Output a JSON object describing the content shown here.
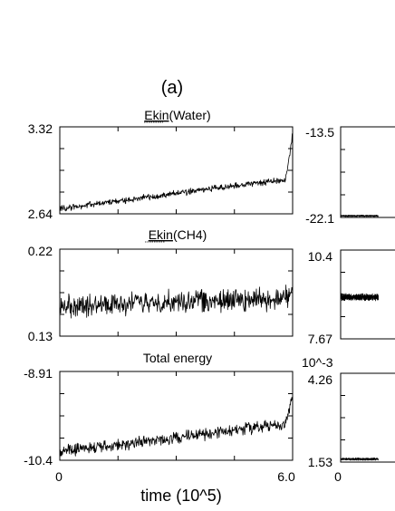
{
  "figure": {
    "panel_label": "(a)",
    "x_axis_title": "time (10^5)"
  },
  "chart_data": [
    {
      "type": "line",
      "id": "ekin-water",
      "title": "Ekin(Water)",
      "title_underlined_part": "Ekin",
      "title_rest": "(Water)",
      "xlim": [
        0,
        6.0
      ],
      "ylim": [
        2.64,
        3.32
      ],
      "y_tick_labels": [
        "3.32",
        "2.64"
      ],
      "x_tick_labels": [],
      "grid": false,
      "legend": "none",
      "series": [
        {
          "color": "#000000",
          "noise_amplitude": 0.03,
          "x": [
            0,
            1,
            2,
            3,
            4,
            5,
            5.8,
            5.9,
            6.0
          ],
          "y": [
            2.68,
            2.72,
            2.76,
            2.8,
            2.84,
            2.88,
            2.9,
            3.05,
            3.27
          ]
        }
      ]
    },
    {
      "type": "line",
      "id": "ekin-ch4",
      "title": "Ekin(CH4)",
      "title_underlined_part": "Ekin",
      "title_rest": "(CH4)",
      "xlim": [
        0,
        6.0
      ],
      "ylim": [
        0.13,
        0.22
      ],
      "y_tick_labels": [
        "0.22",
        "0.13"
      ],
      "x_tick_labels": [],
      "grid": false,
      "legend": "none",
      "series": [
        {
          "color": "#000000",
          "noise_amplitude": 0.014,
          "x": [
            0,
            2,
            4,
            5.8,
            6.0
          ],
          "y": [
            0.161,
            0.164,
            0.167,
            0.168,
            0.178
          ]
        }
      ]
    },
    {
      "type": "line",
      "id": "total-energy",
      "title": "Total energy",
      "xlim": [
        0,
        6.0
      ],
      "ylim": [
        -10.4,
        -8.91
      ],
      "y_tick_labels": [
        "-8.91",
        "-10.4"
      ],
      "x_tick_labels": [
        "0",
        "6.0"
      ],
      "grid": false,
      "legend": "none",
      "series": [
        {
          "color": "#000000",
          "noise_amplitude": 0.12,
          "x": [
            0,
            1,
            2,
            3,
            4,
            5,
            5.8,
            5.9,
            6.0
          ],
          "y": [
            -10.25,
            -10.18,
            -10.1,
            -10.02,
            -9.94,
            -9.86,
            -9.8,
            -9.6,
            -9.3
          ]
        }
      ]
    },
    {
      "type": "line",
      "id": "right-top",
      "title": "",
      "xlim": [
        0,
        6.0
      ],
      "ylim": [
        -22.1,
        -13.5
      ],
      "y_tick_labels": [
        "-13.5",
        "-22.1"
      ],
      "x_tick_labels": [],
      "grid": false,
      "legend": "none",
      "series": [
        {
          "color": "#000000",
          "noise_amplitude": 0.08,
          "x": [
            0,
            0.35
          ],
          "y": [
            -21.95,
            -21.95
          ]
        }
      ]
    },
    {
      "type": "line",
      "id": "right-middle",
      "title": "",
      "xlim": [
        0,
        6.0
      ],
      "ylim": [
        7.67,
        10.4
      ],
      "y_tick_labels": [
        "10.4",
        "7.67"
      ],
      "x_tick_labels": [],
      "grid": false,
      "legend": "none",
      "series": [
        {
          "color": "#000000",
          "noise_amplitude": 0.12,
          "x": [
            0,
            0.35
          ],
          "y": [
            8.95,
            8.95
          ]
        }
      ]
    },
    {
      "type": "line",
      "id": "right-bottom",
      "title": "",
      "multiplier_label": "10^-3",
      "xlim": [
        0,
        6.0
      ],
      "ylim": [
        1.53,
        4.26
      ],
      "y_tick_labels": [
        "4.26",
        "1.53"
      ],
      "x_tick_labels": [
        "0"
      ],
      "grid": false,
      "legend": "none",
      "series": [
        {
          "color": "#000000",
          "noise_amplitude": 0.04,
          "x": [
            0,
            0.35
          ],
          "y": [
            1.62,
            1.62
          ]
        }
      ]
    }
  ]
}
